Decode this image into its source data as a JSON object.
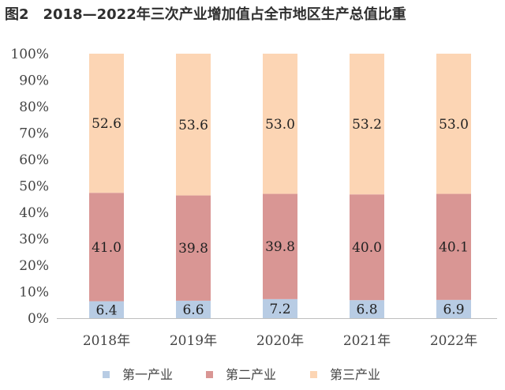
{
  "title": "图2　2018—2022年三次产业增加值占全市地区生产总值比重",
  "chart_data": {
    "type": "bar",
    "stacked": true,
    "percent": true,
    "categories": [
      "2018年",
      "2019年",
      "2020年",
      "2021年",
      "2022年"
    ],
    "series": [
      {
        "name": "第一产业",
        "color": "#b8cce4",
        "values": [
          6.4,
          6.6,
          7.2,
          6.8,
          6.9
        ]
      },
      {
        "name": "第二产业",
        "color": "#d99694",
        "values": [
          41.0,
          39.8,
          39.8,
          40.0,
          40.1
        ]
      },
      {
        "name": "第三产业",
        "color": "#fcd5b4",
        "values": [
          52.6,
          53.6,
          53.0,
          53.2,
          53.0
        ]
      }
    ],
    "data_labels": [
      [
        "6.4",
        "6.6",
        "7.2",
        "6.8",
        "6.9"
      ],
      [
        "41.0",
        "39.8",
        "39.8",
        "40.0",
        "40.1"
      ],
      [
        "52.6",
        "53.6",
        "53.0",
        "53.2",
        "53.0"
      ]
    ],
    "y_ticks": [
      "0%",
      "10%",
      "20%",
      "30%",
      "40%",
      "50%",
      "60%",
      "70%",
      "80%",
      "90%",
      "100%"
    ],
    "ylim": [
      0,
      100
    ],
    "grid": false,
    "legend_position": "bottom"
  }
}
